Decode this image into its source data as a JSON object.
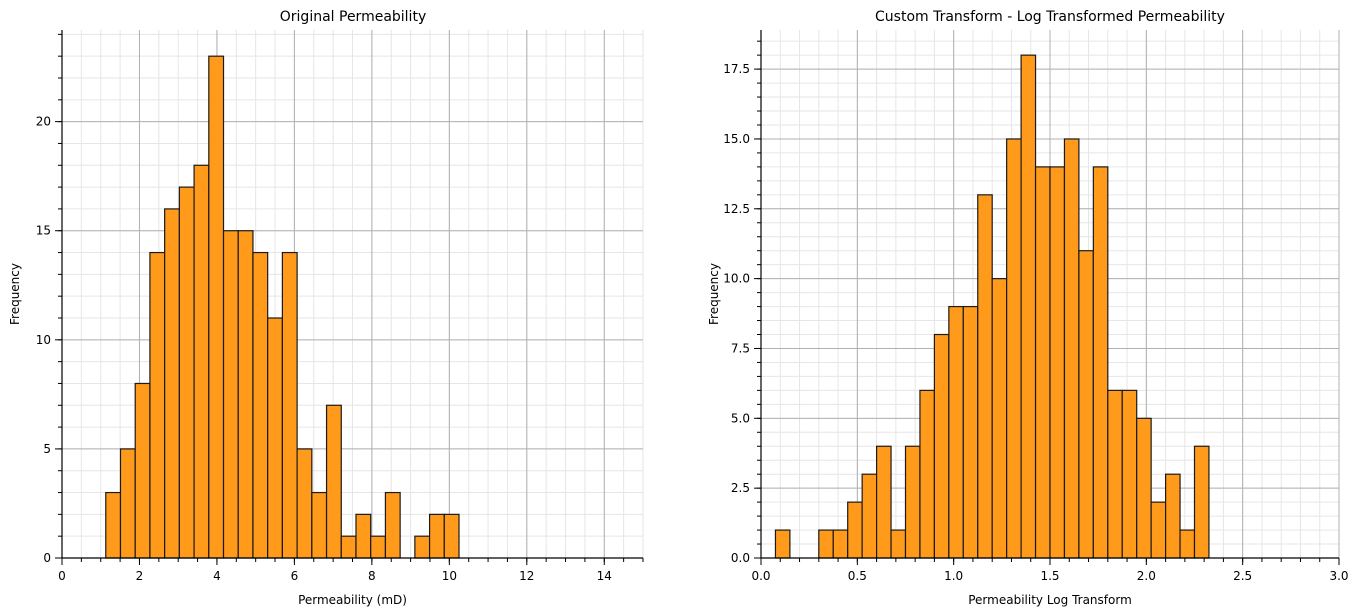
{
  "chart_data": [
    {
      "type": "bar",
      "title": "Original Permeability",
      "xlabel": "Permeability (mD)",
      "ylabel": "Frequency",
      "xlim": [
        0,
        15
      ],
      "ylim": [
        0,
        24.2
      ],
      "xticks": [
        0,
        2,
        4,
        6,
        8,
        10,
        12,
        14
      ],
      "xtick_labels": [
        "0",
        "2",
        "4",
        "6",
        "8",
        "10",
        "12",
        "14"
      ],
      "yticks": [
        0,
        5,
        10,
        15,
        20
      ],
      "ytick_labels": [
        "0",
        "5",
        "10",
        "15",
        "20"
      ],
      "bin_edges": [
        1.13,
        1.51,
        1.89,
        2.27,
        2.65,
        3.03,
        3.41,
        3.79,
        4.17,
        4.55,
        4.93,
        5.31,
        5.69,
        6.07,
        6.45,
        6.83,
        7.21,
        7.59,
        7.97,
        8.35,
        8.73,
        9.11,
        9.49,
        9.87,
        10.25
      ],
      "counts": [
        3,
        5,
        8,
        14,
        16,
        17,
        18,
        23,
        15,
        15,
        14,
        11,
        14,
        5,
        3,
        7,
        1,
        2,
        1,
        3,
        0,
        1,
        2,
        2
      ],
      "grid": true,
      "bar_color": "#ff9a1a",
      "edge_color": "#1a1a1a"
    },
    {
      "type": "bar",
      "title": "Custom Transform - Log Transformed Permeability",
      "xlabel": "Permeability Log Transform",
      "ylabel": "Frequency",
      "xlim": [
        0,
        3.0
      ],
      "ylim": [
        0,
        18.9
      ],
      "xticks": [
        0.0,
        0.5,
        1.0,
        1.5,
        2.0,
        2.5,
        3.0
      ],
      "xtick_labels": [
        "0.0",
        "0.5",
        "1.0",
        "1.5",
        "2.0",
        "2.5",
        "3.0"
      ],
      "yticks": [
        0.0,
        2.5,
        5.0,
        7.5,
        10.0,
        12.5,
        15.0,
        17.5
      ],
      "ytick_labels": [
        "0.0",
        "2.5",
        "5.0",
        "7.5",
        "10.0",
        "12.5",
        "15.0",
        "17.5"
      ],
      "bin_edges": [
        0.075,
        0.15,
        0.225,
        0.3,
        0.375,
        0.45,
        0.525,
        0.6,
        0.675,
        0.75,
        0.825,
        0.9,
        0.975,
        1.05,
        1.125,
        1.2,
        1.275,
        1.35,
        1.425,
        1.5,
        1.575,
        1.65,
        1.725,
        1.8,
        1.875,
        1.95,
        2.025,
        2.1,
        2.175,
        2.25,
        2.325
      ],
      "counts": [
        1,
        0,
        0,
        1,
        1,
        2,
        3,
        4,
        1,
        4,
        6,
        8,
        9,
        9,
        13,
        10,
        15,
        18,
        14,
        14,
        15,
        11,
        14,
        6,
        6,
        5,
        2,
        3,
        1,
        4
      ],
      "grid": true,
      "bar_color": "#ff9a1a",
      "edge_color": "#1a1a1a"
    }
  ]
}
